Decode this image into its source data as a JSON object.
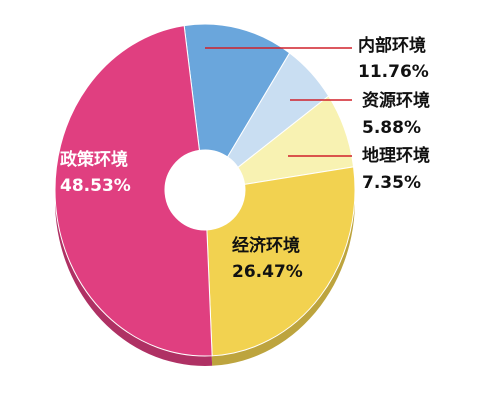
{
  "chart_data": {
    "type": "donut",
    "categories": [
      "内部环境",
      "资源环境",
      "地理环境",
      "经济环境",
      "政策环境"
    ],
    "values": [
      11.76,
      5.88,
      7.35,
      26.47,
      48.53
    ],
    "value_labels": [
      "11.76%",
      "5.88%",
      "7.35%",
      "26.47%",
      "48.53%"
    ],
    "colors": [
      "#6aa6dc",
      "#c9def2",
      "#f8f2b2",
      "#f2d250",
      "#e03f80"
    ]
  }
}
